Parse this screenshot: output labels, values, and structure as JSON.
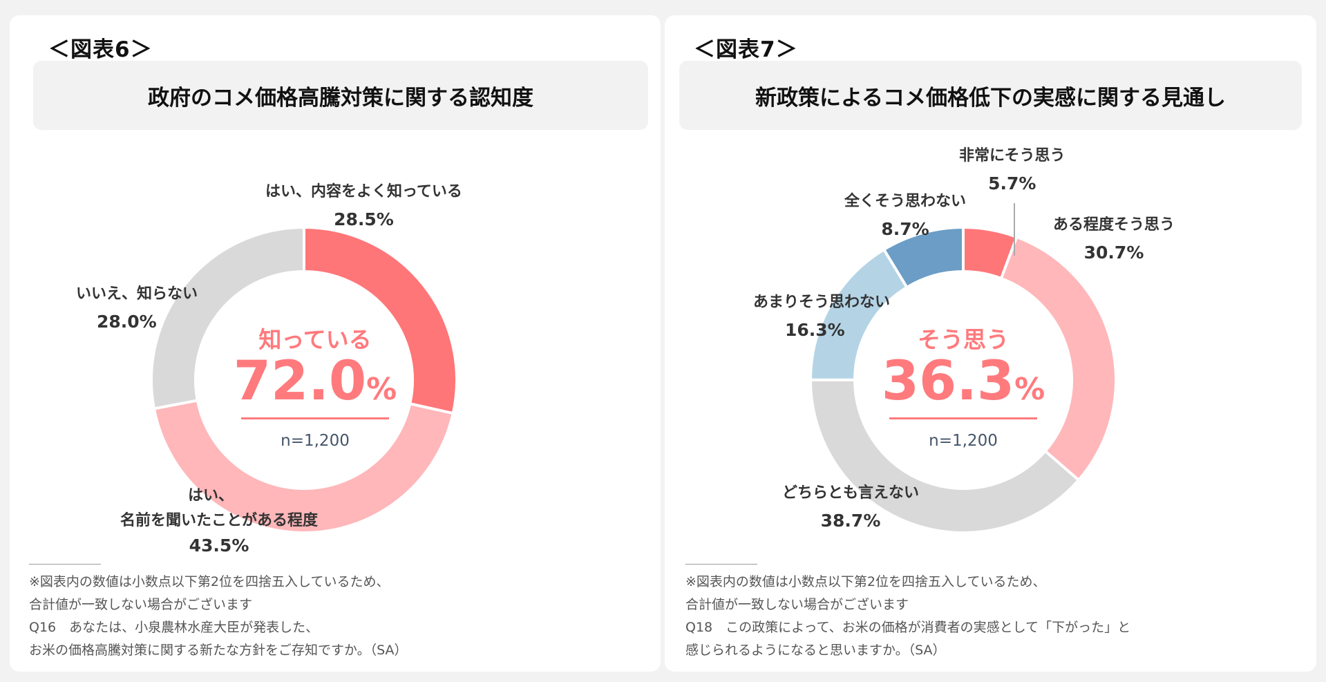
{
  "figures": [
    {
      "label": "＜図表6＞",
      "title": "政府のコメ価格高騰対策に関する認知度",
      "center": {
        "keyword": "知っている",
        "value": "72.0",
        "unit": "%",
        "n": "n=1,200"
      },
      "labels": {
        "s0": {
          "line1": "はい、内容をよく知っている",
          "pct": "28.5%"
        },
        "s1": {
          "line1": "はい、",
          "line2": "名前を聞いたことがある程度",
          "pct": "43.5%"
        },
        "s2": {
          "line1": "いいえ、知らない",
          "pct": "28.0%"
        }
      },
      "notes": [
        "※図表内の数値は小数点以下第2位を四捨五入しているため、",
        "合計値が一致しない場合がございます",
        "Q16　あなたは、小泉農林水産大臣が発表した、",
        "お米の価格高騰対策に関する新たな方針をご存知ですか。（SA）"
      ]
    },
    {
      "label": "＜図表7＞",
      "title": "新政策によるコメ価格低下の実感に関する見通し",
      "center": {
        "keyword": "そう思う",
        "value": "36.3",
        "unit": "%",
        "n": "n=1,200"
      },
      "labels": {
        "s0": {
          "line1": "非常にそう思う",
          "pct": "5.7%"
        },
        "s1": {
          "line1": "ある程度そう思う",
          "pct": "30.7%"
        },
        "s2": {
          "line1": "どちらとも言えない",
          "pct": "38.7%"
        },
        "s3": {
          "line1": "あまりそう思わない",
          "pct": "16.3%"
        },
        "s4": {
          "line1": "全くそう思わない",
          "pct": "8.7%"
        }
      },
      "notes": [
        "※図表内の数値は小数点以下第2位を四捨五入しているため、",
        "合計値が一致しない場合がございます",
        "Q18　この政策によって、お米の価格が消費者の実感として「下がった」と",
        "感じられるようになると思いますか。（SA）"
      ]
    }
  ],
  "chart_data": [
    {
      "type": "pie",
      "donut": true,
      "title": "政府のコメ価格高騰対策に関する認知度",
      "categories": [
        "はい、内容をよく知っている",
        "はい、名前を聞いたことがある程度",
        "いいえ、知らない"
      ],
      "values": [
        28.5,
        43.5,
        28.0
      ],
      "colors": [
        "#ff7678",
        "#ffb7ba",
        "#d9d9d9"
      ],
      "n": "n=1,200"
    },
    {
      "type": "pie",
      "donut": true,
      "title": "新政策によるコメ価格低下の実感に関する見通し",
      "categories": [
        "非常にそう思う",
        "ある程度そう思う",
        "どちらとも言えない",
        "あまりそう思わない",
        "全くそう思わない"
      ],
      "values": [
        5.7,
        30.7,
        38.7,
        16.3,
        8.7
      ],
      "colors": [
        "#ff7678",
        "#ffb7ba",
        "#d9d9d9",
        "#b4d4e6",
        "#6b9dc6"
      ],
      "n": "n=1,200"
    }
  ]
}
